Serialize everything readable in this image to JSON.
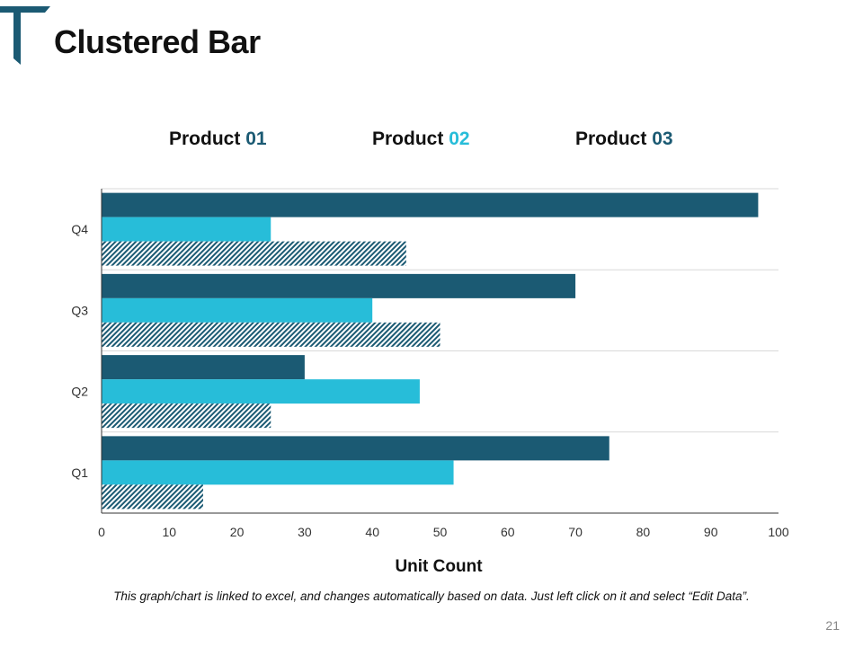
{
  "slide": {
    "title": "Clustered Bar",
    "footnote": "This graph/chart is linked to excel, and changes automatically based on data. Just left click on it and select “Edit Data”.",
    "page_number": "21"
  },
  "legend": {
    "items": [
      {
        "prefix": "Product",
        "number": "01"
      },
      {
        "prefix": "Product",
        "number": "02"
      },
      {
        "prefix": "Product",
        "number": "03"
      }
    ]
  },
  "colors": {
    "product_01": "#1b5a73",
    "product_02": "#27bdd9",
    "product_03_pattern": "#1b5a73",
    "gridline": "#d9d9d9",
    "axis": "#333333"
  },
  "chart_data": {
    "type": "bar",
    "orientation": "horizontal",
    "categories": [
      "Q1",
      "Q2",
      "Q3",
      "Q4"
    ],
    "series": [
      {
        "name": "Product 01",
        "values": [
          75,
          30,
          70,
          97
        ]
      },
      {
        "name": "Product 02",
        "values": [
          52,
          47,
          40,
          25
        ]
      },
      {
        "name": "Product 03",
        "values": [
          15,
          25,
          50,
          45
        ]
      }
    ],
    "xlim": [
      0,
      100
    ],
    "xticks": [
      0,
      10,
      20,
      30,
      40,
      50,
      60,
      70,
      80,
      90,
      100
    ],
    "xlabel": "Unit Count",
    "ylabel": "",
    "grid": true,
    "legend_position": "top"
  }
}
